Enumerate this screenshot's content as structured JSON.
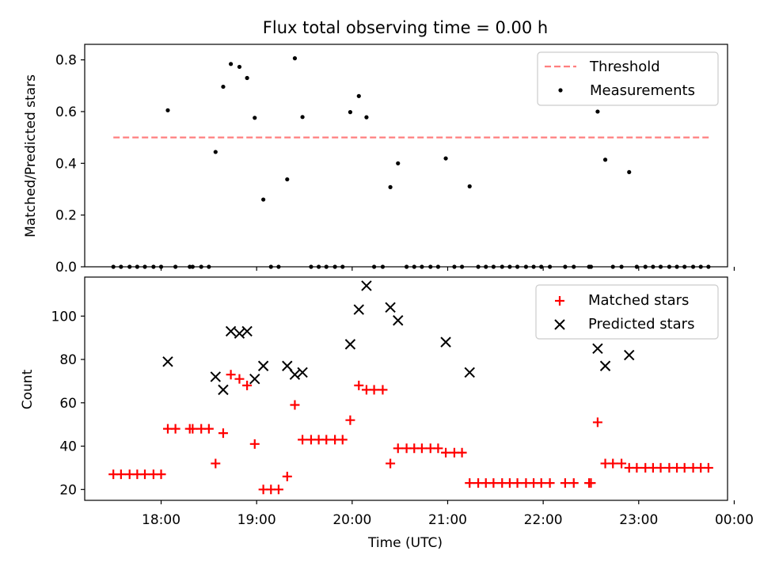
{
  "chart_data": [
    {
      "type": "scatter",
      "title": "Flux total observing time = 0.00 h",
      "xlabel": "",
      "ylabel": "Matched/Predicted stars",
      "ylim": [
        0,
        0.86
      ],
      "yticks": [
        0.0,
        0.2,
        0.4,
        0.6,
        0.8
      ],
      "ytick_labels": [
        "0.0",
        "0.2",
        "0.4",
        "0.6",
        "0.8"
      ],
      "legend_position": "top-right",
      "threshold": {
        "name": "Threshold",
        "value": 0.5,
        "x_start": 17.5,
        "x_end": 23.75,
        "color": "#ff7f7f"
      },
      "series": [
        {
          "name": "Measurements",
          "color": "#000000",
          "marker": "dot",
          "points": [
            [
              17.5,
              0
            ],
            [
              17.58,
              0
            ],
            [
              17.67,
              0
            ],
            [
              17.75,
              0
            ],
            [
              17.83,
              0
            ],
            [
              17.92,
              0
            ],
            [
              18.0,
              0
            ],
            [
              18.07,
              0.605
            ],
            [
              18.15,
              0
            ],
            [
              18.3,
              0
            ],
            [
              18.33,
              0
            ],
            [
              18.42,
              0
            ],
            [
              18.5,
              0
            ],
            [
              18.57,
              0.444
            ],
            [
              18.65,
              0.696
            ],
            [
              18.73,
              0.784
            ],
            [
              18.82,
              0.773
            ],
            [
              18.9,
              0.73
            ],
            [
              18.98,
              0.576
            ],
            [
              19.07,
              0.26
            ],
            [
              19.15,
              0
            ],
            [
              19.23,
              0
            ],
            [
              19.32,
              0.338
            ],
            [
              19.4,
              0.806
            ],
            [
              19.48,
              0.579
            ],
            [
              19.57,
              0
            ],
            [
              19.65,
              0
            ],
            [
              19.73,
              0
            ],
            [
              19.82,
              0
            ],
            [
              19.9,
              0
            ],
            [
              19.98,
              0.598
            ],
            [
              20.07,
              0.66
            ],
            [
              20.15,
              0.578
            ],
            [
              20.23,
              0
            ],
            [
              20.32,
              0
            ],
            [
              20.4,
              0.308
            ],
            [
              20.48,
              0.4
            ],
            [
              20.57,
              0
            ],
            [
              20.65,
              0
            ],
            [
              20.73,
              0
            ],
            [
              20.82,
              0
            ],
            [
              20.9,
              0
            ],
            [
              20.98,
              0.419
            ],
            [
              21.07,
              0
            ],
            [
              21.15,
              0
            ],
            [
              21.23,
              0.311
            ],
            [
              21.32,
              0
            ],
            [
              21.4,
              0
            ],
            [
              21.48,
              0
            ],
            [
              21.57,
              0
            ],
            [
              21.65,
              0
            ],
            [
              21.73,
              0
            ],
            [
              21.82,
              0
            ],
            [
              21.9,
              0
            ],
            [
              21.98,
              0
            ],
            [
              22.07,
              0
            ],
            [
              22.23,
              0
            ],
            [
              22.32,
              0
            ],
            [
              22.48,
              0
            ],
            [
              22.5,
              0
            ],
            [
              22.57,
              0.6
            ],
            [
              22.65,
              0.414
            ],
            [
              22.73,
              0
            ],
            [
              22.82,
              0
            ],
            [
              22.9,
              0.366
            ],
            [
              22.98,
              0
            ],
            [
              23.07,
              0
            ],
            [
              23.15,
              0
            ],
            [
              23.23,
              0
            ],
            [
              23.32,
              0
            ],
            [
              23.4,
              0
            ],
            [
              23.48,
              0
            ],
            [
              23.57,
              0
            ],
            [
              23.65,
              0
            ],
            [
              23.73,
              0
            ]
          ]
        }
      ]
    },
    {
      "type": "scatter",
      "title": "",
      "xlabel": "Time (UTC)",
      "ylabel": "Count",
      "ylim": [
        15,
        118
      ],
      "yticks": [
        20,
        40,
        60,
        80,
        100
      ],
      "ytick_labels": [
        "20",
        "40",
        "60",
        "80",
        "100"
      ],
      "xlim": [
        17.2,
        23.93
      ],
      "xticks": [
        18,
        19,
        20,
        21,
        22,
        23,
        24
      ],
      "xtick_labels": [
        "18:00",
        "19:00",
        "20:00",
        "21:00",
        "22:00",
        "23:00",
        "00:00"
      ],
      "legend_position": "top-right",
      "series": [
        {
          "name": "Matched stars",
          "color": "#ff0000",
          "marker": "plus",
          "points": [
            [
              17.5,
              27
            ],
            [
              17.58,
              27
            ],
            [
              17.67,
              27
            ],
            [
              17.75,
              27
            ],
            [
              17.83,
              27
            ],
            [
              17.92,
              27
            ],
            [
              18.0,
              27
            ],
            [
              18.07,
              48
            ],
            [
              18.15,
              48
            ],
            [
              18.3,
              48
            ],
            [
              18.33,
              48
            ],
            [
              18.42,
              48
            ],
            [
              18.5,
              48
            ],
            [
              18.57,
              32
            ],
            [
              18.65,
              46
            ],
            [
              18.73,
              73
            ],
            [
              18.82,
              71
            ],
            [
              18.9,
              68
            ],
            [
              18.98,
              41
            ],
            [
              19.07,
              20
            ],
            [
              19.15,
              20
            ],
            [
              19.23,
              20
            ],
            [
              19.32,
              26
            ],
            [
              19.4,
              59
            ],
            [
              19.48,
              43
            ],
            [
              19.57,
              43
            ],
            [
              19.65,
              43
            ],
            [
              19.73,
              43
            ],
            [
              19.82,
              43
            ],
            [
              19.9,
              43
            ],
            [
              19.98,
              52
            ],
            [
              20.07,
              68
            ],
            [
              20.15,
              66
            ],
            [
              20.23,
              66
            ],
            [
              20.32,
              66
            ],
            [
              20.4,
              32
            ],
            [
              20.48,
              39
            ],
            [
              20.57,
              39
            ],
            [
              20.65,
              39
            ],
            [
              20.73,
              39
            ],
            [
              20.82,
              39
            ],
            [
              20.9,
              39
            ],
            [
              20.98,
              37
            ],
            [
              21.07,
              37
            ],
            [
              21.15,
              37
            ],
            [
              21.23,
              23
            ],
            [
              21.32,
              23
            ],
            [
              21.4,
              23
            ],
            [
              21.48,
              23
            ],
            [
              21.57,
              23
            ],
            [
              21.65,
              23
            ],
            [
              21.73,
              23
            ],
            [
              21.82,
              23
            ],
            [
              21.9,
              23
            ],
            [
              21.98,
              23
            ],
            [
              22.07,
              23
            ],
            [
              22.23,
              23
            ],
            [
              22.32,
              23
            ],
            [
              22.48,
              23
            ],
            [
              22.5,
              23
            ],
            [
              22.57,
              51
            ],
            [
              22.65,
              32
            ],
            [
              22.73,
              32
            ],
            [
              22.82,
              32
            ],
            [
              22.9,
              30
            ],
            [
              22.98,
              30
            ],
            [
              23.07,
              30
            ],
            [
              23.15,
              30
            ],
            [
              23.23,
              30
            ],
            [
              23.32,
              30
            ],
            [
              23.4,
              30
            ],
            [
              23.48,
              30
            ],
            [
              23.57,
              30
            ],
            [
              23.65,
              30
            ],
            [
              23.73,
              30
            ]
          ]
        },
        {
          "name": "Predicted stars",
          "color": "#000000",
          "marker": "x",
          "points": [
            [
              18.07,
              79
            ],
            [
              18.57,
              72
            ],
            [
              18.65,
              66
            ],
            [
              18.73,
              93
            ],
            [
              18.82,
              92
            ],
            [
              18.9,
              93
            ],
            [
              18.98,
              71
            ],
            [
              19.07,
              77
            ],
            [
              19.32,
              77
            ],
            [
              19.4,
              73
            ],
            [
              19.48,
              74
            ],
            [
              19.98,
              87
            ],
            [
              20.07,
              103
            ],
            [
              20.15,
              114
            ],
            [
              20.4,
              104
            ],
            [
              20.48,
              98
            ],
            [
              20.98,
              88
            ],
            [
              21.23,
              74
            ],
            [
              22.57,
              85
            ],
            [
              22.65,
              77
            ],
            [
              22.9,
              82
            ]
          ]
        }
      ]
    }
  ]
}
